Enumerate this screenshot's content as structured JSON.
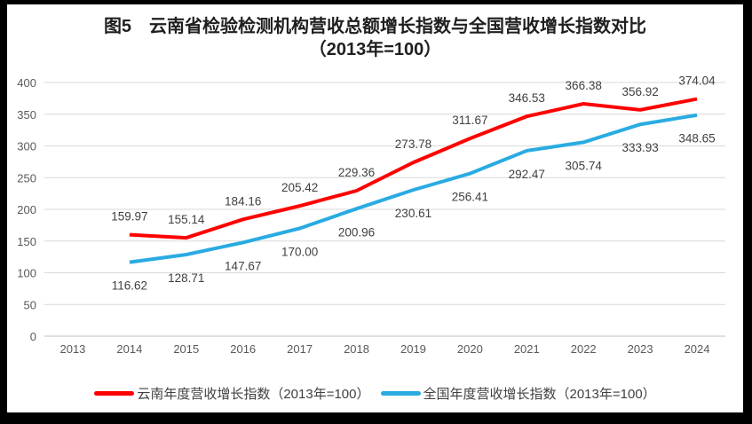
{
  "chart_data": {
    "type": "line",
    "title": "图5　云南省检验检测机构营收总额增长指数与全国营收增长指数对比",
    "subtitle": "（2013年=100）",
    "categories": [
      "2013",
      "2014",
      "2015",
      "2016",
      "2017",
      "2018",
      "2019",
      "2020",
      "2021",
      "2022",
      "2023",
      "2024"
    ],
    "yticks": [
      0,
      50,
      100,
      150,
      200,
      250,
      300,
      350,
      400
    ],
    "ylim": [
      0,
      400
    ],
    "grid": true,
    "legend_position": "bottom",
    "series": [
      {
        "name": "云南年度营收增长指数（2013年=100）",
        "color": "#FF0000",
        "label_position": "above",
        "values": [
          null,
          159.97,
          155.14,
          184.16,
          205.42,
          229.36,
          273.78,
          311.67,
          346.53,
          366.38,
          356.92,
          374.04
        ]
      },
      {
        "name": "全国年度营收增长指数（2013年=100）",
        "color": "#29ABE2",
        "label_position": "below",
        "values": [
          null,
          116.62,
          128.71,
          147.67,
          170.0,
          200.96,
          230.61,
          256.41,
          292.47,
          305.74,
          333.93,
          348.65
        ]
      }
    ],
    "colors": {
      "grid": "#D9D9D9",
      "axis": "#BFBFBF",
      "tick_label": "#595959",
      "data_label": "#404040",
      "frame": "#000000",
      "background": "#FFFFFF"
    }
  }
}
